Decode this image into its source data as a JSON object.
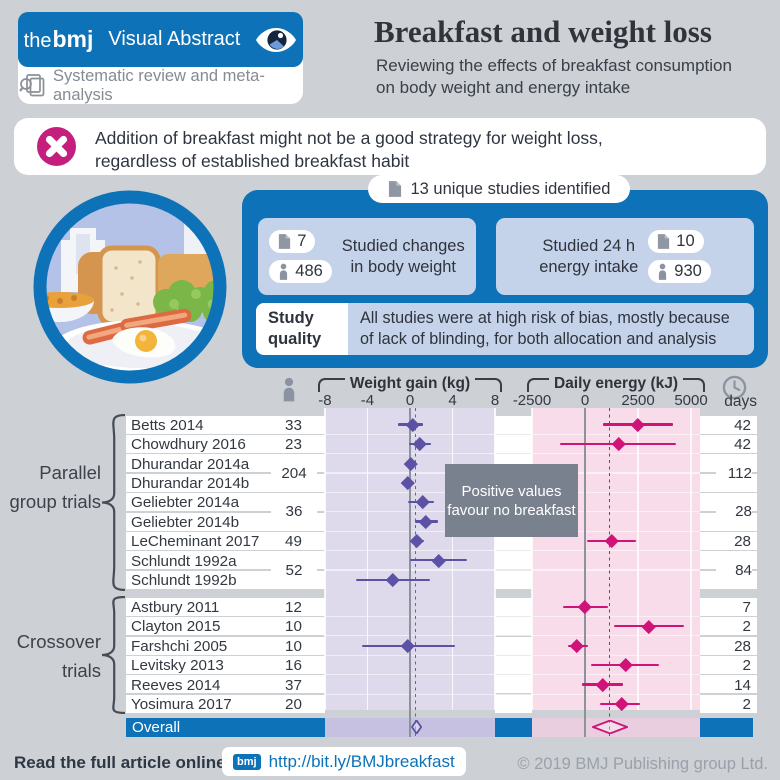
{
  "header": {
    "brand": {
      "the": "the",
      "bmj": "bmj",
      "product": "Visual Abstract",
      "tagline": "Systematic review and meta-analysis"
    },
    "title": "Breakfast and weight loss",
    "subtitle_line1": "Reviewing the effects of breakfast consumption",
    "subtitle_line2": "on body weight and energy intake"
  },
  "key_message": {
    "line1": "Addition of breakfast might not be a good strategy for weight loss,",
    "line2": "regardless of established breakfast habit"
  },
  "study_summary": {
    "total_label": "13 unique studies identified",
    "left": {
      "studies": "7",
      "participants": "486",
      "label_line1": "Studied changes",
      "label_line2": "in body weight"
    },
    "right": {
      "studies": "10",
      "participants": "930",
      "label_line1": "Studied 24 h",
      "label_line2": "energy intake"
    }
  },
  "study_quality": {
    "label": "Study quality",
    "text": "All studies were at high risk of bias, mostly because of lack of blinding, for both allocation and analysis"
  },
  "plot": {
    "annotation": "Positive values favour no breakfast",
    "days_header": "days"
  },
  "chart_data": {
    "type": "forest",
    "panels": [
      {
        "id": "weight",
        "title": "Weight gain (kg)",
        "ticks": [
          -8,
          -4,
          0,
          4,
          8
        ],
        "band_color": "#ded9eb",
        "overall_band_color": "#c6c1e0",
        "marker_color": "#5b51a5",
        "pooled_line": 0.5
      },
      {
        "id": "energy",
        "title": "Daily energy (kJ)",
        "ticks": [
          -2500,
          0,
          2500,
          5000
        ],
        "band_color": "#f8dcea",
        "overall_band_color": "#e8cede",
        "marker_color": "#cf1378",
        "pooled_line": 1150
      }
    ],
    "groups": [
      {
        "label": "Parallel group trials",
        "studies": [
          {
            "name": "Betts 2014",
            "n": "33",
            "days": "42",
            "weight": {
              "est": 0.3,
              "lo": -1.1,
              "hi": 1.2
            },
            "energy": {
              "est": 2500,
              "lo": 850,
              "hi": 4150
            }
          },
          {
            "name": "Chowdhury 2016",
            "n": "23",
            "days": "42",
            "weight": {
              "est": 0.9,
              "lo": -0.1,
              "hi": 2.0
            },
            "energy": {
              "est": 1600,
              "lo": -1200,
              "hi": 4300
            }
          },
          {
            "name": "Dhurandar 2014a",
            "n": "204",
            "n_span": 2,
            "days": "112",
            "days_span": 2,
            "weight": {
              "est": 0.1,
              "lo": -0.3,
              "hi": 0.6
            }
          },
          {
            "name": "Dhurandar 2014b",
            "weight": {
              "est": -0.2,
              "lo": -0.7,
              "hi": 0.4
            }
          },
          {
            "name": "Geliebter 2014a",
            "n": "36",
            "n_span": 2,
            "days": "28",
            "days_span": 2,
            "weight": {
              "est": 1.2,
              "lo": -0.2,
              "hi": 2.3
            }
          },
          {
            "name": "Geliebter 2014b",
            "weight": {
              "est": 1.5,
              "lo": 0.5,
              "hi": 2.6
            }
          },
          {
            "name": "LeCheminant 2017",
            "n": "49",
            "days": "28",
            "weight": {
              "est": 0.6,
              "lo": 0.0,
              "hi": 1.3
            },
            "energy": {
              "est": 1250,
              "lo": 100,
              "hi": 2400
            }
          },
          {
            "name": "Schlundt 1992a",
            "n": "52",
            "n_span": 2,
            "days": "84",
            "days_span": 2,
            "weight": {
              "est": 2.7,
              "lo": 0.0,
              "hi": 5.4
            }
          },
          {
            "name": "Schlundt 1992b",
            "weight": {
              "est": -1.6,
              "lo": -5.1,
              "hi": 1.9
            }
          }
        ]
      },
      {
        "label": "Crossover trials",
        "studies": [
          {
            "name": "Astbury 2011",
            "n": "12",
            "days": "7",
            "energy": {
              "est": 0,
              "lo": -1050,
              "hi": 1100
            }
          },
          {
            "name": "Clayton 2015",
            "n": "10",
            "days": "2",
            "energy": {
              "est": 3000,
              "lo": 1350,
              "hi": 4650
            }
          },
          {
            "name": "Farshchi 2005",
            "n": "10",
            "days": "28",
            "weight": {
              "est": -0.2,
              "lo": -4.5,
              "hi": 4.2
            },
            "energy": {
              "est": -380,
              "lo": -820,
              "hi": 150
            }
          },
          {
            "name": "Levitsky 2013",
            "n": "16",
            "days": "2",
            "energy": {
              "est": 1900,
              "lo": 300,
              "hi": 3500
            }
          },
          {
            "name": "Reeves 2014",
            "n": "37",
            "days": "14",
            "energy": {
              "est": 820,
              "lo": -150,
              "hi": 1780
            }
          },
          {
            "name": "Yosimura 2017",
            "n": "20",
            "days": "2",
            "energy": {
              "est": 1730,
              "lo": 720,
              "hi": 2590
            }
          }
        ]
      }
    ],
    "overall": {
      "label": "Overall",
      "weight": {
        "est": 0.5,
        "lo": 0.05,
        "hi": 1.1
      },
      "energy": {
        "est": 1150,
        "lo": 350,
        "hi": 2050
      }
    }
  },
  "footer": {
    "prompt": "Read the full article online:",
    "bmj_badge": "bmj",
    "link": "http://bit.ly/BMJbreakfast",
    "copyright": "© 2019 BMJ Publishing group Ltd."
  }
}
